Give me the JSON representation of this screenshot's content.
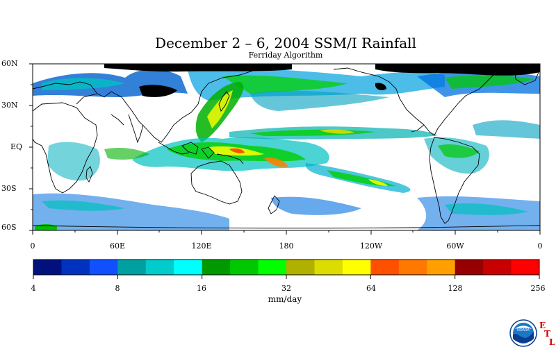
{
  "title": "December 2 – 6, 2004 SSM/I Rainfall",
  "subtitle": "Ferriday Algorithm",
  "lat_labels": [
    "60N",
    "30N",
    "EQ",
    "30S",
    "60S"
  ],
  "lon_labels": [
    "0",
    "60E",
    "120E",
    "180",
    "120W",
    "60W",
    "0"
  ],
  "colorbar": {
    "colors": [
      "#00107c",
      "#0032c0",
      "#1050ff",
      "#00a0a0",
      "#00cccc",
      "#00ffff",
      "#009900",
      "#00c800",
      "#00ff00",
      "#b0b000",
      "#dcdc00",
      "#ffff00",
      "#ff5000",
      "#ff7800",
      "#ffa000",
      "#960000",
      "#c80000",
      "#ff0000"
    ],
    "tick_labels": [
      "4",
      "8",
      "16",
      "32",
      "64",
      "128",
      "256"
    ],
    "units": "mm/day"
  },
  "logo": {
    "name": "NOARA",
    "etl_letters": [
      "E",
      "T",
      "L"
    ]
  }
}
